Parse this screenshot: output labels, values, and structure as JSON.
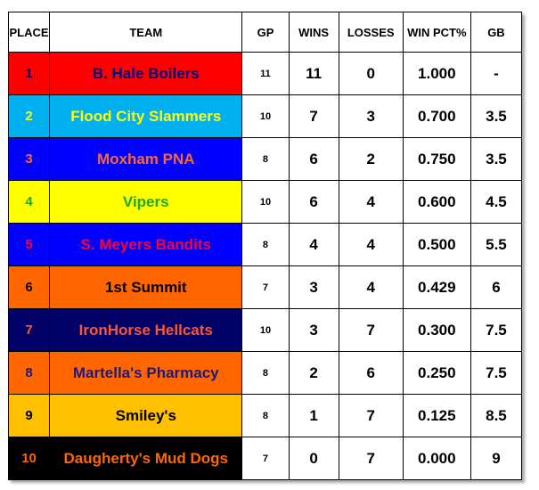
{
  "columns": {
    "place": "PLACE",
    "team": "TEAM",
    "gp": "GP",
    "wins": "WINS",
    "losses": "LOSSES",
    "pct": "WIN PCT%",
    "gb": "GB"
  },
  "rows": [
    {
      "place": "1",
      "team": "B. Hale Boilers",
      "gp": "11",
      "wins": "11",
      "losses": "0",
      "pct": "1.000",
      "gb": "-",
      "bg": "#ff0000",
      "fg": "#00007a"
    },
    {
      "place": "2",
      "team": "Flood City Slammers",
      "gp": "10",
      "wins": "7",
      "losses": "3",
      "pct": "0.700",
      "gb": "3.5",
      "bg": "#00b0f0",
      "fg": "#ffff00"
    },
    {
      "place": "3",
      "team": "Moxham PNA",
      "gp": "8",
      "wins": "6",
      "losses": "2",
      "pct": "0.750",
      "gb": "3.5",
      "bg": "#0000ff",
      "fg": "#ff6633"
    },
    {
      "place": "4",
      "team": "Vipers",
      "gp": "10",
      "wins": "6",
      "losses": "4",
      "pct": "0.600",
      "gb": "4.5",
      "bg": "#ffff00",
      "fg": "#1fa81f"
    },
    {
      "place": "5",
      "team": "S. Meyers Bandits",
      "gp": "8",
      "wins": "4",
      "losses": "4",
      "pct": "0.500",
      "gb": "5.5",
      "bg": "#0000ff",
      "fg": "#ff0033"
    },
    {
      "place": "6",
      "team": "1st Summit",
      "gp": "7",
      "wins": "3",
      "losses": "4",
      "pct": "0.429",
      "gb": "6",
      "bg": "#ff6600",
      "fg": "#000000"
    },
    {
      "place": "7",
      "team": "IronHorse Hellcats",
      "gp": "10",
      "wins": "3",
      "losses": "7",
      "pct": "0.300",
      "gb": "7.5",
      "bg": "#000066",
      "fg": "#ff5533"
    },
    {
      "place": "8",
      "team": "Martella's Pharmacy",
      "gp": "8",
      "wins": "2",
      "losses": "6",
      "pct": "0.250",
      "gb": "7.5",
      "bg": "#ff6600",
      "fg": "#1a1a80"
    },
    {
      "place": "9",
      "team": "Smiley's",
      "gp": "8",
      "wins": "1",
      "losses": "7",
      "pct": "0.125",
      "gb": "8.5",
      "bg": "#ffc000",
      "fg": "#000000"
    },
    {
      "place": "10",
      "team": "Daugherty's Mud Dogs",
      "gp": "7",
      "wins": "0",
      "losses": "7",
      "pct": "0.000",
      "gb": "9",
      "bg": "#000000",
      "fg": "#ff6600"
    }
  ]
}
